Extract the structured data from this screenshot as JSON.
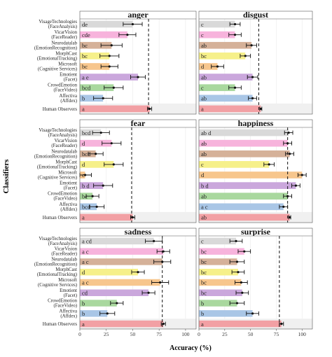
{
  "figure": {
    "ylabel": "Classifiers",
    "xlabel": "Accuracy (%)"
  },
  "chart_data": {
    "type": "bar",
    "orientation": "horizontal",
    "layout": "3 rows x 2 columns of facets",
    "xlim": [
      0,
      110
    ],
    "x_ticks": [
      "0",
      "25",
      "50",
      "75",
      "100"
    ],
    "x_tick_values": [
      0,
      25,
      50,
      75,
      100
    ],
    "classifier_labels": [
      [
        "VisageTechnologies",
        "(FaceAnalysis)"
      ],
      [
        "VicarVision",
        "(FaceReader)"
      ],
      [
        "Neurodatalab",
        "(EmotionRecognition)"
      ],
      [
        "MorphCast",
        "(EmotionalTracking)"
      ],
      [
        "Microsoft",
        "(Cognitive Services)"
      ],
      [
        "Emotient",
        "(Facet)"
      ],
      [
        "CrowdEmotion",
        "(FaceVideo)"
      ],
      [
        "Affectiva",
        "(Affdex)"
      ],
      [
        "Human Observers"
      ]
    ],
    "colors": [
      "#d9d9d9",
      "#f7b3dc",
      "#d5b199",
      "#f6f08a",
      "#f7c68d",
      "#caa7dc",
      "#a9d89e",
      "#a9c6e6",
      "#f2a0a4"
    ],
    "panels": [
      {
        "title": "anger",
        "values": [
          50,
          45,
          30,
          28,
          28,
          55,
          32,
          22,
          66
        ],
        "errors": [
          9,
          8,
          10,
          9,
          8,
          7,
          9,
          9,
          2
        ],
        "letters": [
          "de",
          "cde",
          "bc",
          "bc",
          "bc",
          "a  e",
          "bcd",
          "b",
          "a"
        ],
        "reference_line": 65
      },
      {
        "title": "disgust",
        "values": [
          35,
          35,
          51,
          45,
          18,
          52,
          35,
          52,
          60
        ],
        "errors": [
          5,
          6,
          5,
          5,
          6,
          5,
          6,
          4,
          1
        ],
        "letters": [
          "c",
          "c",
          "ab",
          "bc",
          "d",
          "ab",
          "c",
          "ab",
          "a"
        ],
        "reference_line": 58
      },
      {
        "title": "fear",
        "values": [
          20,
          30,
          15,
          32,
          5,
          22,
          12,
          16,
          50
        ],
        "errors": [
          8,
          9,
          7,
          9,
          6,
          9,
          6,
          7,
          2
        ],
        "letters": [
          "bcd",
          "d",
          "bcd",
          "d",
          "c",
          "b d",
          "bc",
          "bcd",
          "a"
        ],
        "reference_line": 49
      },
      {
        "title": "happiness",
        "values": [
          87,
          86,
          88,
          68,
          100,
          94,
          86,
          82,
          88
        ],
        "errors": [
          4,
          4,
          4,
          5,
          4,
          4,
          4,
          4,
          1
        ],
        "letters": [
          "ab d",
          "ab",
          "ab",
          "c",
          "d",
          "b d",
          "ab",
          "a c",
          "ab"
        ],
        "reference_line": 86
      },
      {
        "title": "sadness",
        "values": [
          70,
          79,
          78,
          55,
          76,
          65,
          35,
          26,
          79
        ],
        "errors": [
          8,
          6,
          8,
          6,
          8,
          6,
          6,
          7,
          2
        ],
        "letters": [
          "a cd",
          "a c",
          "a c",
          "d",
          "a c",
          "cd",
          "b",
          "b",
          "a"
        ],
        "reference_line": 78
      },
      {
        "title": "surprise",
        "values": [
          36,
          44,
          37,
          38,
          41,
          42,
          37,
          52,
          80
        ],
        "errors": [
          6,
          6,
          7,
          6,
          6,
          6,
          7,
          6,
          2
        ],
        "letters": [
          "c",
          "bc",
          "bc",
          "bc",
          "bc",
          "bc",
          "b",
          "b",
          "a"
        ],
        "reference_line": 78
      }
    ]
  }
}
